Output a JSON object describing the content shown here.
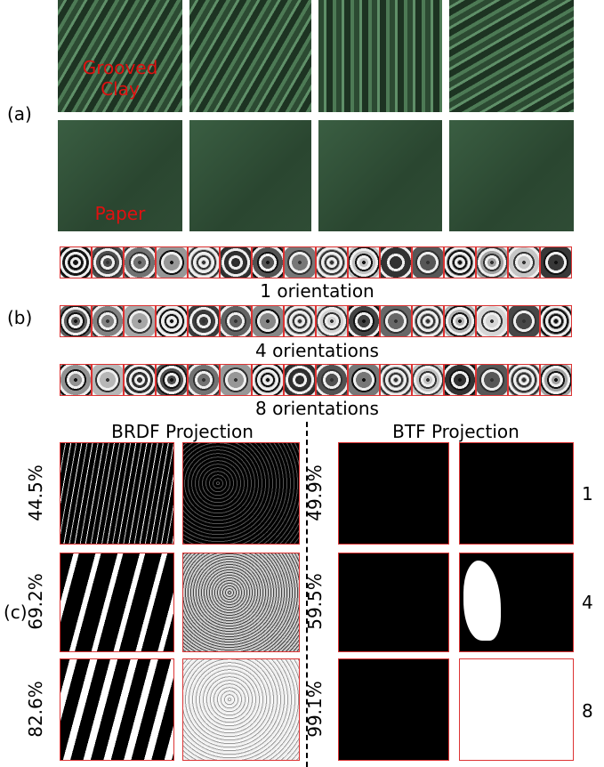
{
  "panel_a": {
    "label": "(a)",
    "materials": [
      "Grooved\nClay",
      "Paper"
    ]
  },
  "panel_b": {
    "label": "(b)",
    "rows": [
      "1 orientation",
      "4 orientations",
      "8 orientations"
    ]
  },
  "panel_c": {
    "label": "(c)",
    "columns": [
      "BRDF Projection",
      "BTF Projection"
    ],
    "brdf_percentages": [
      "44.5%",
      "69.2%",
      "82.6%"
    ],
    "btf_percentages": [
      "49.9%",
      "59.5%",
      "99.1%"
    ],
    "orientations": [
      "1",
      "4",
      "8"
    ]
  }
}
